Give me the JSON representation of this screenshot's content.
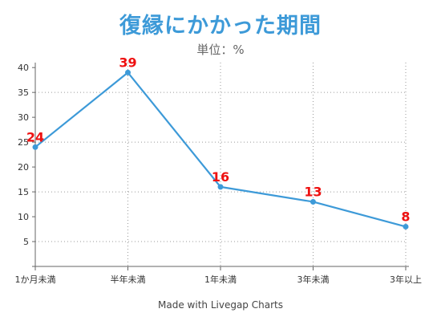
{
  "chart_data": {
    "type": "line",
    "title": "復縁にかかった期間",
    "subtitle": "単位：%",
    "categories": [
      "1か月未満",
      "半年未満",
      "1年未満",
      "3年未満",
      "3年以上"
    ],
    "values": [
      24,
      39,
      16,
      13,
      8
    ],
    "ylim": [
      0,
      41
    ],
    "yticks": [
      5,
      10,
      15,
      20,
      25,
      30,
      35,
      40
    ],
    "grid": true,
    "data_labels": true,
    "colors": {
      "line": "#3d9ad8",
      "title": "#3d9ad8",
      "data_label": "#ee1111",
      "grid": "#9a9a9a"
    }
  },
  "footer": "Made with Livegap Charts"
}
